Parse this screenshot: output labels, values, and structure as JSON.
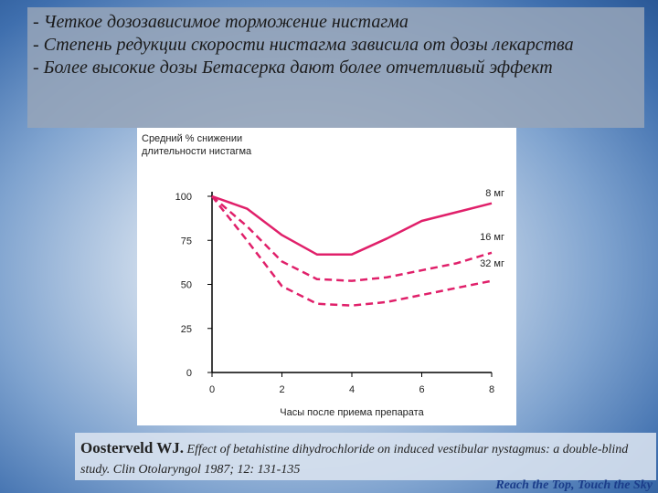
{
  "points": [
    "- Четкое дозозависимое торможение нистагма",
    "- Степень редукции скорости нистагма зависила от дозы лекарства",
    "- Более высокие дозы Бетасерка дают более отчетливый эффект"
  ],
  "citation": {
    "author": "Oosterveld WJ.",
    "text": "Effect of betahistine dihydrochloride on induced vestibular nystagmus: a double-blind study. Clin Otolaryngol 1987; 12: 131-135"
  },
  "footer": "Reach the Top, Touch the Sky",
  "chart_data": {
    "type": "line",
    "ylabel": [
      "Средний % снижении",
      "длительности нистагма"
    ],
    "xlabel": "Часы после приема препарата",
    "x": [
      0,
      1,
      2,
      3,
      4,
      5,
      6,
      7,
      8
    ],
    "series": [
      {
        "name": "8 мг",
        "color": "#e0206a",
        "dash": false,
        "values": [
          100,
          93,
          78,
          67,
          67,
          76,
          86,
          91,
          96
        ]
      },
      {
        "name": "16 мг",
        "color": "#e0206a",
        "dash": true,
        "values": [
          100,
          83,
          63,
          53,
          52,
          54,
          58,
          62,
          68
        ]
      },
      {
        "name": "32 мг",
        "color": "#e0206a",
        "dash": true,
        "values": [
          100,
          75,
          49,
          39,
          38,
          40,
          44,
          48,
          52
        ]
      }
    ],
    "xlim": [
      0,
      8
    ],
    "ylim": [
      0,
      100
    ],
    "xticks": [
      0,
      2,
      4,
      6,
      8
    ],
    "yticks": [
      0,
      25,
      50,
      75,
      100
    ]
  }
}
